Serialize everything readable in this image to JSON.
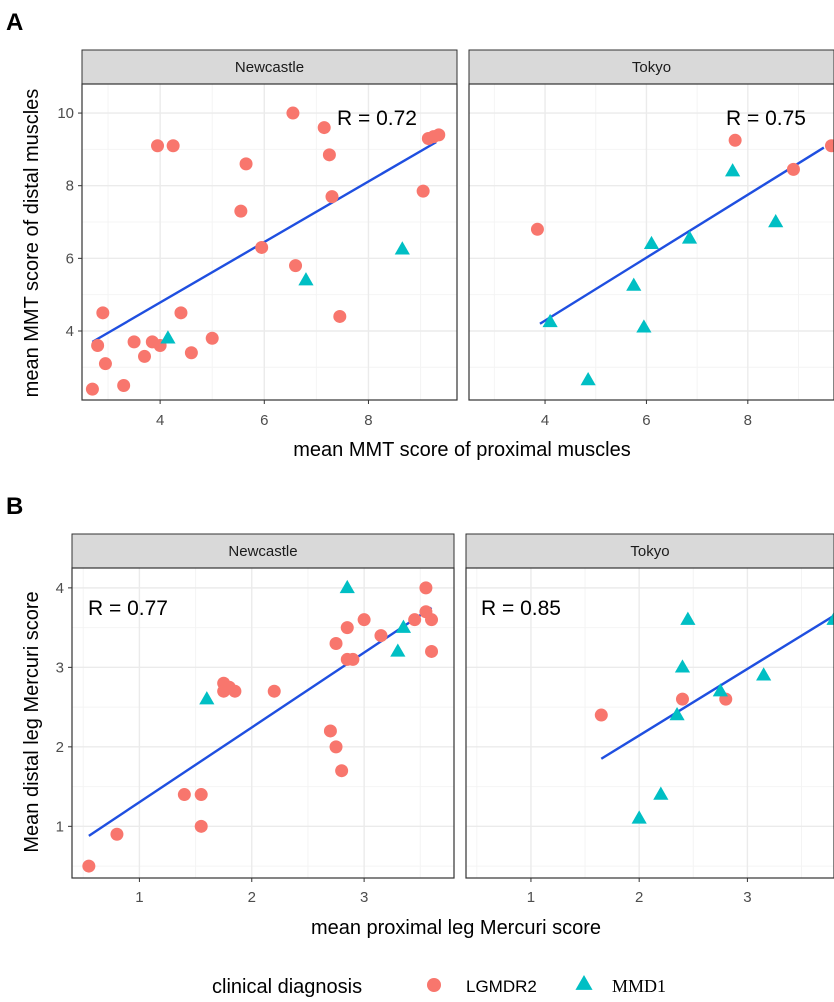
{
  "colors": {
    "LGMDR2": "#F8766D",
    "MMD1": "#00BFC4",
    "fit_line": "#1F4FE0",
    "strip_fill": "#D9D9D9",
    "grid_major": "#EBEBEB",
    "grid_minor": "#F4F4F4"
  },
  "legend": {
    "title": "clinical diagnosis",
    "items": [
      {
        "label": "LGMDR2",
        "shape": "circle"
      },
      {
        "label": "MMD1",
        "shape": "triangle"
      }
    ]
  },
  "chart_data": [
    {
      "panel_label": "A",
      "type": "scatter",
      "xlabel": "mean MMT score of proximal muscles",
      "ylabel": "mean MMT score of distal muscles",
      "xlim": [
        2.5,
        9.7
      ],
      "ylim": [
        2.1,
        10.8
      ],
      "x_ticks": [
        4,
        6,
        8
      ],
      "y_ticks": [
        4,
        6,
        8,
        10
      ],
      "grid": true,
      "facets": [
        {
          "strip": "Newcastle",
          "r_text": "R = 0.72",
          "fit": {
            "x": [
              2.7,
              9.3
            ],
            "y": [
              3.7,
              9.2
            ]
          },
          "series": [
            {
              "name": "LGMDR2",
              "points": [
                [
                  2.7,
                  2.4
                ],
                [
                  2.8,
                  3.6
                ],
                [
                  2.9,
                  4.5
                ],
                [
                  2.95,
                  3.1
                ],
                [
                  3.3,
                  2.5
                ],
                [
                  3.5,
                  3.7
                ],
                [
                  3.7,
                  3.3
                ],
                [
                  3.85,
                  3.7
                ],
                [
                  3.95,
                  9.1
                ],
                [
                  4.0,
                  3.6
                ],
                [
                  4.25,
                  9.1
                ],
                [
                  4.4,
                  4.5
                ],
                [
                  4.6,
                  3.4
                ],
                [
                  5.0,
                  3.8
                ],
                [
                  5.55,
                  7.3
                ],
                [
                  5.65,
                  8.6
                ],
                [
                  5.95,
                  6.3
                ],
                [
                  6.55,
                  10.0
                ],
                [
                  6.6,
                  5.8
                ],
                [
                  7.15,
                  9.6
                ],
                [
                  7.25,
                  8.85
                ],
                [
                  7.3,
                  7.7
                ],
                [
                  7.45,
                  4.4
                ],
                [
                  9.05,
                  7.85
                ],
                [
                  9.15,
                  9.3
                ],
                [
                  9.25,
                  9.35
                ],
                [
                  9.35,
                  9.4
                ]
              ]
            },
            {
              "name": "MMD1",
              "points": [
                [
                  4.15,
                  3.8
                ],
                [
                  6.8,
                  5.4
                ],
                [
                  8.65,
                  6.25
                ]
              ]
            }
          ]
        },
        {
          "strip": "Tokyo",
          "r_text": "R = 0.75",
          "fit": {
            "x": [
              3.9,
              9.5
            ],
            "y": [
              4.2,
              9.05
            ]
          },
          "series": [
            {
              "name": "LGMDR2",
              "points": [
                [
                  3.85,
                  6.8
                ],
                [
                  7.75,
                  9.25
                ],
                [
                  8.9,
                  8.45
                ],
                [
                  9.65,
                  9.1
                ]
              ]
            },
            {
              "name": "MMD1",
              "points": [
                [
                  4.1,
                  4.25
                ],
                [
                  4.85,
                  2.65
                ],
                [
                  5.75,
                  5.25
                ],
                [
                  5.95,
                  4.1
                ],
                [
                  6.1,
                  6.4
                ],
                [
                  6.85,
                  6.55
                ],
                [
                  7.7,
                  8.4
                ],
                [
                  8.55,
                  7.0
                ]
              ]
            }
          ]
        }
      ]
    },
    {
      "panel_label": "B",
      "type": "scatter",
      "xlabel": "mean proximal leg Mercuri score",
      "ylabel": "Mean distal leg Mercuri score",
      "xlim": [
        0.4,
        3.8
      ],
      "ylim": [
        0.35,
        4.25
      ],
      "x_ticks": [
        1,
        2,
        3
      ],
      "y_ticks": [
        1,
        2,
        3,
        4
      ],
      "grid": true,
      "facets": [
        {
          "strip": "Newcastle",
          "r_text": "R = 0.77",
          "fit": {
            "x": [
              0.55,
              3.6
            ],
            "y": [
              0.88,
              3.75
            ]
          },
          "series": [
            {
              "name": "LGMDR2",
              "points": [
                [
                  0.55,
                  0.5
                ],
                [
                  0.8,
                  0.9
                ],
                [
                  1.4,
                  1.4
                ],
                [
                  1.55,
                  1.4
                ],
                [
                  1.55,
                  1.0
                ],
                [
                  1.75,
                  2.8
                ],
                [
                  1.75,
                  2.7
                ],
                [
                  1.8,
                  2.75
                ],
                [
                  1.85,
                  2.7
                ],
                [
                  2.2,
                  2.7
                ],
                [
                  2.7,
                  2.2
                ],
                [
                  2.75,
                  2.0
                ],
                [
                  2.8,
                  1.7
                ],
                [
                  2.75,
                  3.3
                ],
                [
                  2.85,
                  3.5
                ],
                [
                  2.85,
                  3.1
                ],
                [
                  2.9,
                  3.1
                ],
                [
                  3.0,
                  3.6
                ],
                [
                  3.15,
                  3.4
                ],
                [
                  3.45,
                  3.6
                ],
                [
                  3.55,
                  4.0
                ],
                [
                  3.55,
                  3.7
                ],
                [
                  3.6,
                  3.6
                ],
                [
                  3.6,
                  3.2
                ]
              ]
            },
            {
              "name": "MMD1",
              "points": [
                [
                  1.6,
                  2.6
                ],
                [
                  2.85,
                  4.0
                ],
                [
                  3.3,
                  3.2
                ],
                [
                  3.35,
                  3.5
                ]
              ]
            }
          ]
        },
        {
          "strip": "Tokyo",
          "r_text": "R = 0.85",
          "fit": {
            "x": [
              1.65,
              3.8
            ],
            "y": [
              1.85,
              3.65
            ]
          },
          "series": [
            {
              "name": "LGMDR2",
              "points": [
                [
                  1.65,
                  2.4
                ],
                [
                  2.4,
                  2.6
                ],
                [
                  2.8,
                  2.6
                ]
              ]
            },
            {
              "name": "MMD1",
              "points": [
                [
                  2.0,
                  1.1
                ],
                [
                  2.2,
                  1.4
                ],
                [
                  2.35,
                  2.4
                ],
                [
                  2.4,
                  3.0
                ],
                [
                  2.45,
                  3.6
                ],
                [
                  2.75,
                  2.7
                ],
                [
                  3.15,
                  2.9
                ],
                [
                  3.8,
                  3.6
                ]
              ]
            }
          ]
        }
      ]
    }
  ]
}
